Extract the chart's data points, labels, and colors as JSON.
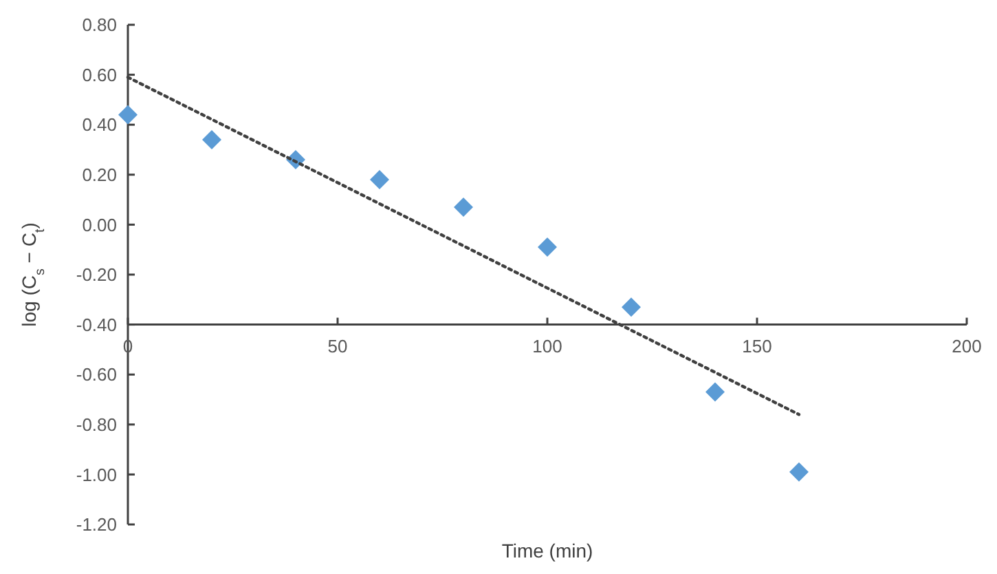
{
  "chart_data": {
    "type": "scatter",
    "xlabel": "Time (min)",
    "ylabel": "log (C$_{s}$ − C$_{t}$)",
    "xlim": [
      0,
      200
    ],
    "xticks": [
      0,
      50,
      100,
      150,
      200
    ],
    "ylim": [
      -1.2,
      0.8
    ],
    "yticks": [
      {
        "value": -1.2,
        "label": "-1.20"
      },
      {
        "value": -1,
        "label": "-1.00"
      },
      {
        "value": -0.8,
        "label": "-0.80"
      },
      {
        "value": -0.6,
        "label": "-0.60"
      },
      {
        "value": -0.4,
        "label": "-0.40"
      },
      {
        "value": -0.2,
        "label": "-0.20"
      },
      {
        "value": 0,
        "label": "0.00"
      },
      {
        "value": 0.2,
        "label": "0.20"
      },
      {
        "value": 0.4,
        "label": "0.40"
      },
      {
        "value": 0.6,
        "label": "0.60"
      },
      {
        "value": 0.8,
        "label": "0.80"
      }
    ],
    "grid": false,
    "series": [
      {
        "color": "#5b9bd5",
        "marker": "diamond",
        "x": [
          0,
          20,
          40,
          60,
          80,
          100,
          120,
          140,
          160
        ],
        "values": [
          0.44,
          0.34,
          0.26,
          0.18,
          0.07,
          -0.09,
          -0.33,
          -0.67,
          -0.99
        ]
      },
      {
        "type": "line",
        "color": "#404040",
        "line_style": "dotted",
        "x": [
          0,
          160
        ],
        "values": [
          0.59,
          -0.76
        ]
      }
    ]
  }
}
